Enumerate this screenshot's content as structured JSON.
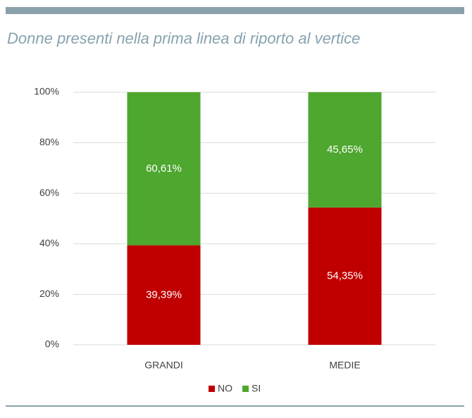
{
  "chart_data": {
    "type": "stacked_bar",
    "title": "Donne presenti nella prima linea di riporto al vertice",
    "categories": [
      "GRANDI",
      "MEDIE"
    ],
    "series": [
      {
        "name": "NO",
        "color": "#c00000",
        "values": [
          39.39,
          54.35
        ],
        "value_labels": [
          "39,39%",
          "54,35%"
        ]
      },
      {
        "name": "SI",
        "color": "#4ea72e",
        "values": [
          60.61,
          45.65
        ],
        "value_labels": [
          "60,61%",
          "45,65%"
        ]
      }
    ],
    "ylim": [
      0,
      100
    ],
    "yticks": [
      {
        "value": 0,
        "label": "0%"
      },
      {
        "value": 20,
        "label": "20%"
      },
      {
        "value": 40,
        "label": "40%"
      },
      {
        "value": 60,
        "label": "60%"
      },
      {
        "value": 80,
        "label": "80%"
      },
      {
        "value": 100,
        "label": "100%"
      }
    ],
    "grid": true,
    "legend": "bottom"
  }
}
